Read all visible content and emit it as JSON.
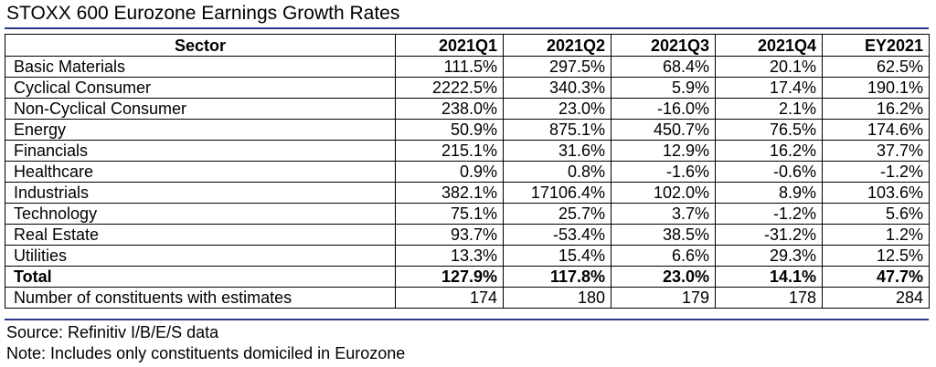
{
  "title": "STOXX 600 Eurozone Earnings Growth Rates",
  "colors": {
    "rule": "#2e3a8c",
    "text": "#000000"
  },
  "table": {
    "headers": [
      "Sector",
      "2021Q1",
      "2021Q2",
      "2021Q3",
      "2021Q4",
      "EY2021"
    ],
    "rows": [
      {
        "name": "Basic Materials",
        "values": [
          "111.5%",
          "297.5%",
          "68.4%",
          "20.1%",
          "62.5%"
        ]
      },
      {
        "name": "Cyclical Consumer",
        "values": [
          "2222.5%",
          "340.3%",
          "5.9%",
          "17.4%",
          "190.1%"
        ]
      },
      {
        "name": "Non-Cyclical Consumer",
        "values": [
          "238.0%",
          "23.0%",
          "-16.0%",
          "2.1%",
          "16.2%"
        ]
      },
      {
        "name": "Energy",
        "values": [
          "50.9%",
          "875.1%",
          "450.7%",
          "76.5%",
          "174.6%"
        ]
      },
      {
        "name": "Financials",
        "values": [
          "215.1%",
          "31.6%",
          "12.9%",
          "16.2%",
          "37.7%"
        ]
      },
      {
        "name": "Healthcare",
        "values": [
          "0.9%",
          "0.8%",
          "-1.6%",
          "-0.6%",
          "-1.2%"
        ]
      },
      {
        "name": "Industrials",
        "values": [
          "382.1%",
          "17106.4%",
          "102.0%",
          "8.9%",
          "103.6%"
        ]
      },
      {
        "name": "Technology",
        "values": [
          "75.1%",
          "25.7%",
          "3.7%",
          "-1.2%",
          "5.6%"
        ]
      },
      {
        "name": "Real Estate",
        "values": [
          "93.7%",
          "-53.4%",
          "38.5%",
          "-31.2%",
          "1.2%"
        ]
      },
      {
        "name": "Utilities",
        "values": [
          "13.3%",
          "15.4%",
          "6.6%",
          "29.3%",
          "12.5%"
        ]
      },
      {
        "name": "Total",
        "values": [
          "127.9%",
          "117.8%",
          "23.0%",
          "14.1%",
          "47.7%"
        ],
        "bold": true
      },
      {
        "name": "Number of constituents with estimates",
        "values": [
          "174",
          "180",
          "179",
          "178",
          "284"
        ]
      }
    ]
  },
  "notes": {
    "source": "Source: Refinitiv I/B/E/S data",
    "note": "Note: Includes only constituents domiciled in Eurozone"
  }
}
